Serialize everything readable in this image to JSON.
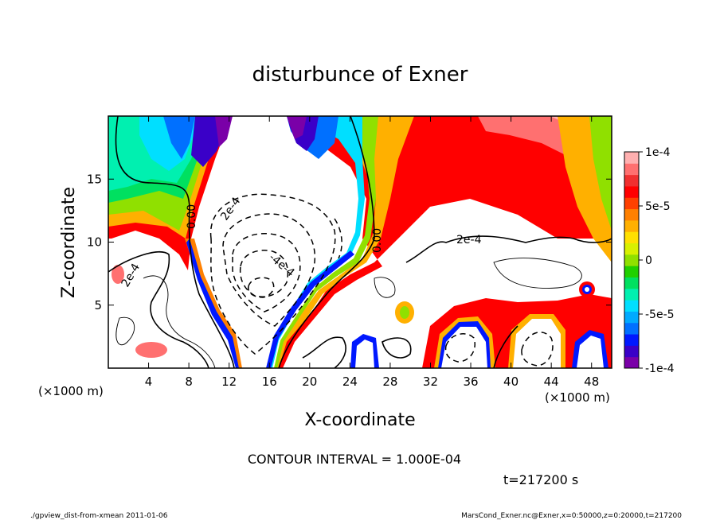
{
  "chart_data": {
    "type": "heatmap",
    "title": "disturbunce of Exner",
    "xlabel": "X-coordinate",
    "ylabel": "Z-coordinate",
    "x_unit": "(×1000 m)",
    "y_unit": "(×1000 m)",
    "xlim": [
      0,
      50
    ],
    "ylim": [
      0,
      20
    ],
    "x_ticks": [
      "4",
      "8",
      "12",
      "16",
      "20",
      "24",
      "28",
      "32",
      "36",
      "40",
      "44",
      "48"
    ],
    "y_ticks": [
      "5",
      "10",
      "15"
    ],
    "colorbar": {
      "range": [
        -0.0001,
        0.0001
      ],
      "tick_labels": [
        "1e-4",
        "5e-5",
        "0",
        "-5e-5",
        "-1e-4"
      ],
      "colors": [
        "#7a00a8",
        "#3a00c8",
        "#0018ff",
        "#0070ff",
        "#00aaff",
        "#00dfff",
        "#00f0b0",
        "#00e060",
        "#20d000",
        "#90e000",
        "#d8f000",
        "#ffe000",
        "#ffb000",
        "#ff8000",
        "#ff4000",
        "#ff0000",
        "#f03030",
        "#ff7070",
        "#ffb0b0"
      ]
    },
    "contour_labels": [
      "0.00",
      "0.00",
      "2e-4",
      "2e-4",
      "2e-4",
      "-4e-4"
    ],
    "annotation": "CONTOUR INTERVAL = 1.000E-04",
    "time_label": "t=217200 s"
  },
  "footer": {
    "left": "./gpview_dist-from-xmean  2011-01-06",
    "right": "MarsCond_Exner.nc@Exner,x=0:50000,z=0:20000,t=217200"
  }
}
